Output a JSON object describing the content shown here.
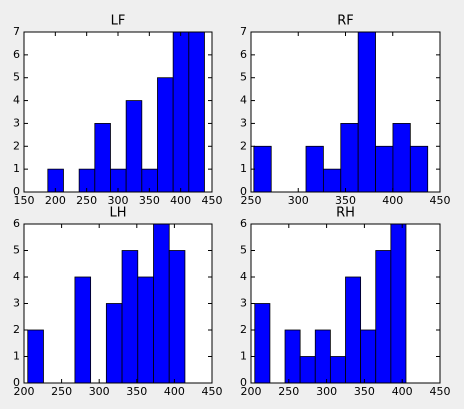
{
  "chart_data": [
    {
      "type": "histogram",
      "title": "LF",
      "color": "#0000ff",
      "bins": [
        188,
        213,
        238,
        263,
        288,
        313,
        338,
        363,
        388,
        413,
        438
      ],
      "values": [
        1,
        0,
        1,
        3,
        1,
        4,
        1,
        5,
        7,
        7
      ],
      "xlim": [
        150,
        450
      ],
      "xticks": [
        150,
        200,
        250,
        300,
        350,
        400,
        450
      ],
      "ylim": [
        0,
        7
      ],
      "yticks": [
        0,
        1,
        2,
        3,
        4,
        5,
        6,
        7
      ]
    },
    {
      "type": "histogram",
      "title": "RF",
      "color": "#0000ff",
      "bins": [
        253,
        271.4,
        289.8,
        308.2,
        326.6,
        345,
        363.4,
        381.8,
        400.2,
        418.6,
        437
      ],
      "values": [
        2,
        0,
        0,
        2,
        1,
        3,
        7,
        2,
        3,
        2
      ],
      "xlim": [
        250,
        450
      ],
      "xticks": [
        250,
        300,
        350,
        400,
        450
      ],
      "ylim": [
        0,
        7
      ],
      "yticks": [
        0,
        1,
        2,
        3,
        4,
        5,
        6,
        7
      ]
    },
    {
      "type": "histogram",
      "title": "LH",
      "color": "#0000ff",
      "bins": [
        205,
        225.9,
        246.8,
        267.7,
        288.6,
        309.5,
        330.4,
        351.3,
        372.2,
        393.1,
        414
      ],
      "values": [
        2,
        0,
        0,
        4,
        0,
        3,
        5,
        4,
        6,
        5
      ],
      "xlim": [
        200,
        450
      ],
      "xticks": [
        200,
        250,
        300,
        350,
        400,
        450
      ],
      "ylim": [
        0,
        6
      ],
      "yticks": [
        0,
        1,
        2,
        3,
        4,
        5,
        6
      ]
    },
    {
      "type": "histogram",
      "title": "RH",
      "color": "#0000ff",
      "bins": [
        205,
        225,
        245,
        265,
        285,
        305,
        325,
        345,
        365,
        385,
        405
      ],
      "values": [
        3,
        0,
        2,
        1,
        2,
        1,
        4,
        2,
        5,
        6
      ],
      "xlim": [
        200,
        450
      ],
      "xticks": [
        200,
        250,
        300,
        350,
        400,
        450
      ],
      "ylim": [
        0,
        6
      ],
      "yticks": [
        0,
        1,
        2,
        3,
        4,
        5,
        6
      ]
    }
  ]
}
